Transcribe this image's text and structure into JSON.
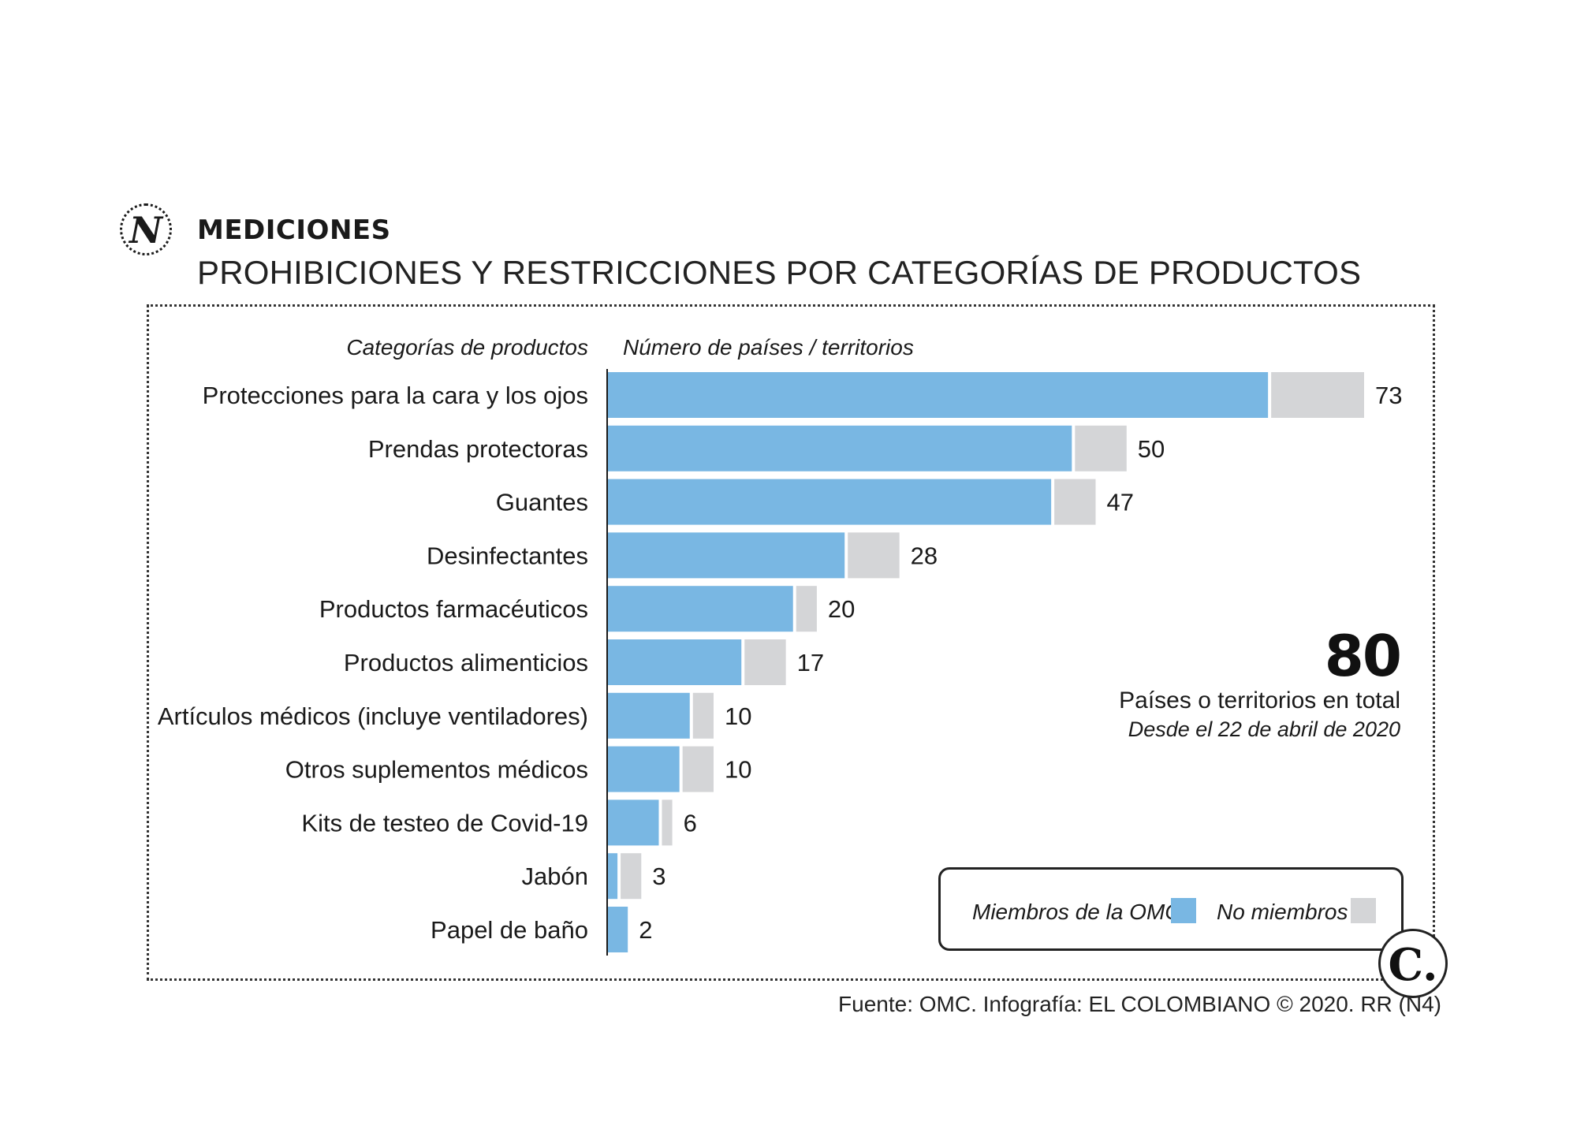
{
  "header": {
    "kicker": "MEDICIONES",
    "title": "PROHIBICIONES Y RESTRICCIONES POR CATEGORÍAS DE PRODUCTOS",
    "logo_letter": "N"
  },
  "chart_data": {
    "type": "bar",
    "orientation": "horizontal",
    "stacked": true,
    "category_header": "Categorías de productos",
    "value_header": "Número de países / territorios",
    "categories": [
      "Protecciones para la cara y los ojos",
      "Prendas protectoras",
      "Guantes",
      "Desinfectantes",
      "Productos farmacéuticos",
      "Productos alimenticios",
      "Artículos médicos (incluye ventiladores)",
      "Otros suplementos médicos",
      "Kits de testeo de Covid-19",
      "Jabón",
      "Papel de baño"
    ],
    "totals": [
      73,
      50,
      47,
      28,
      20,
      17,
      10,
      10,
      6,
      3,
      2
    ],
    "series": [
      {
        "name": "Miembros de la OMC",
        "color": "#79b7e3",
        "values": [
          64,
          45,
          43,
          23,
          18,
          13,
          8,
          7,
          5,
          1,
          2
        ]
      },
      {
        "name": "No miembros",
        "color": "#d4d5d7",
        "values": [
          9,
          5,
          4,
          5,
          2,
          4,
          2,
          3,
          1,
          2,
          0
        ]
      }
    ]
  },
  "summary": {
    "total_value": "80",
    "total_label": "Países o territorios en total",
    "date_label": "Desde el 22 de abril de 2020"
  },
  "legend": {
    "members_label": "Miembros de la OMC",
    "non_members_label": "No miembros"
  },
  "footer": {
    "source": "Fuente: OMC. Infografía: EL COLOMBIANO © 2020. RR (N4)",
    "brand_mark": "C."
  }
}
